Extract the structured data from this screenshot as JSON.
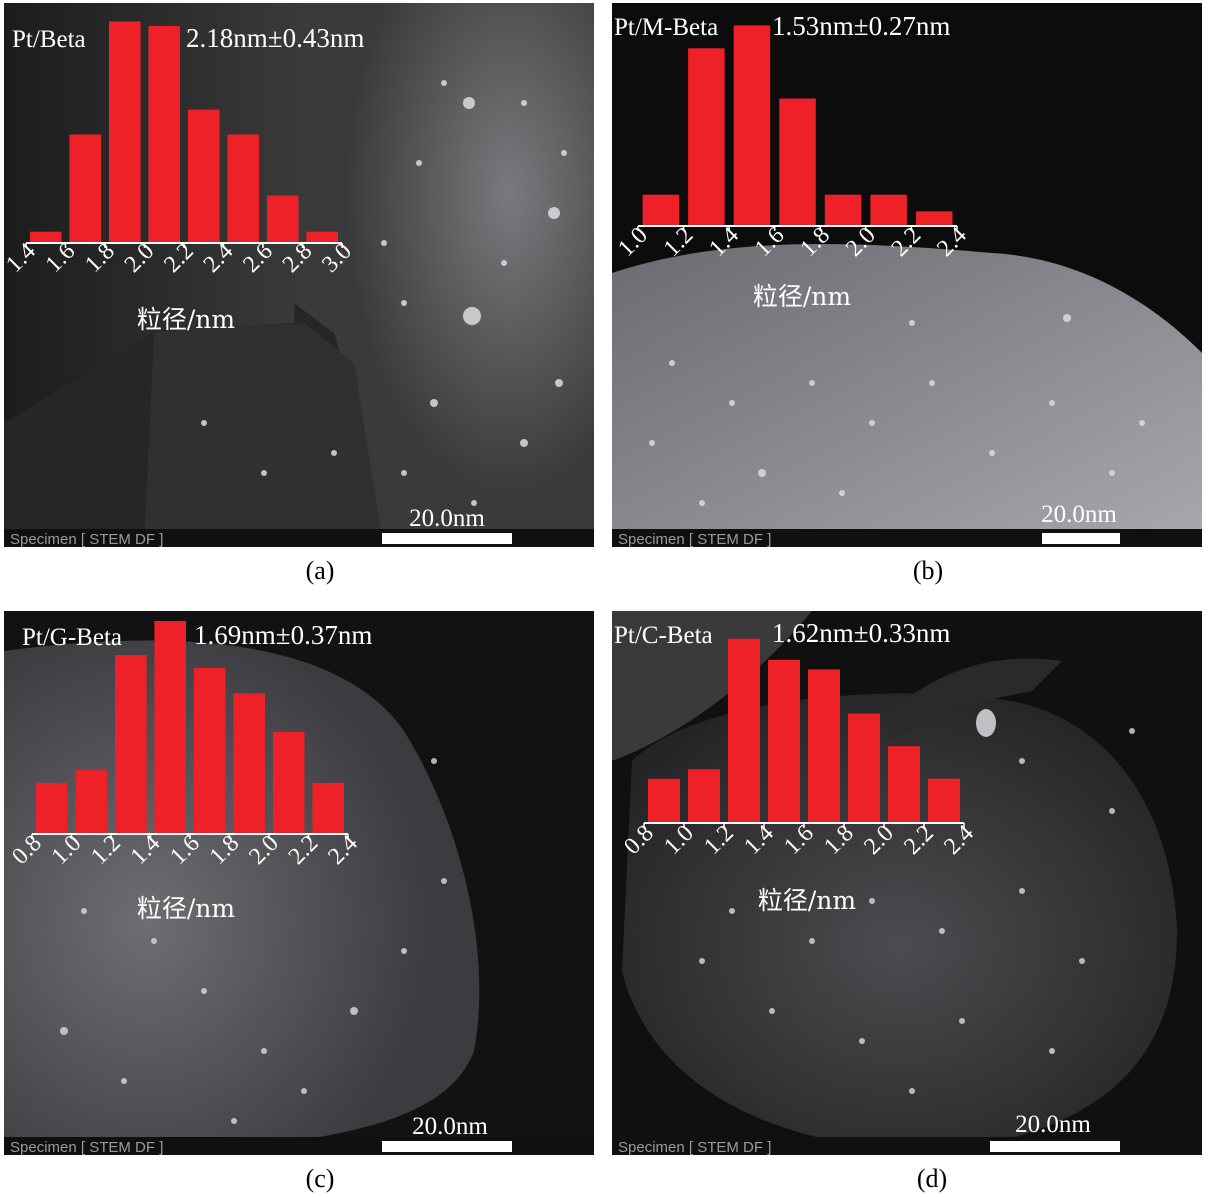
{
  "chart_data": [
    {
      "type": "bar",
      "panel": "(a)",
      "series_name": "Pt/Beta",
      "stat_label": "2.18nm±0.43nm",
      "xlabel": "粒径/nm",
      "tick_labels": [
        "1.4",
        "1.6",
        "1.8",
        "2.0",
        "2.2",
        "2.4",
        "2.6",
        "2.8",
        "3.0"
      ],
      "values": [
        5,
        48,
        98,
        96,
        59,
        48,
        21,
        5
      ],
      "ylim": [
        0,
        100
      ],
      "bar_color": "#ee2128"
    },
    {
      "type": "bar",
      "panel": "(b)",
      "series_name": "Pt/M-Beta",
      "stat_label": "1.53nm±0.27nm",
      "xlabel": "粒径/nm",
      "tick_labels": [
        "1.0",
        "1.2",
        "1.4",
        "1.6",
        "1.8",
        "2.0",
        "2.2",
        "2.4"
      ],
      "values": [
        15,
        85,
        96,
        61,
        15,
        15,
        7
      ],
      "ylim": [
        0,
        100
      ],
      "bar_color": "#ee2128"
    },
    {
      "type": "bar",
      "panel": "(c)",
      "series_name": "Pt/G-Beta",
      "stat_label": "1.69nm±0.37nm",
      "xlabel": "粒径/nm",
      "tick_labels": [
        "0.8",
        "1.0",
        "1.2",
        "1.4",
        "1.6",
        "1.8",
        "2.0",
        "2.2",
        "2.4"
      ],
      "values": [
        24,
        30,
        84,
        100,
        78,
        66,
        48,
        24
      ],
      "ylim": [
        0,
        100
      ],
      "bar_color": "#ee2128"
    },
    {
      "type": "bar",
      "panel": "(d)",
      "series_name": "Pt/C-Beta",
      "stat_label": "1.62nm±0.33nm",
      "xlabel": "粒径/nm",
      "tick_labels": [
        "0.8",
        "1.0",
        "1.2",
        "1.4",
        "1.6",
        "1.8",
        "2.0",
        "2.2",
        "2.4"
      ],
      "values": [
        23,
        28,
        96,
        85,
        80,
        57,
        40,
        23
      ],
      "ylim": [
        0,
        100
      ],
      "bar_color": "#ee2128"
    }
  ],
  "scale_bar_label": "20.0nm",
  "footer_label": "Specimen [ STEM DF ]",
  "captions": [
    "(a)",
    "(b)",
    "(c)",
    "(d)"
  ]
}
